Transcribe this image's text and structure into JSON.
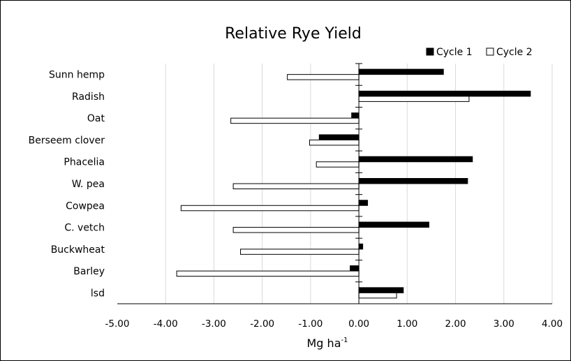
{
  "chart_data": {
    "type": "bar",
    "orientation": "horizontal",
    "title": "Relative Rye Yield",
    "xlabel_main": "Mg ha",
    "xlabel_sup": "-1",
    "ylabel": "",
    "xlim": [
      -5,
      4
    ],
    "x_ticks": [
      "-5.00",
      "-4.00",
      "-3.00",
      "-2.00",
      "-1.00",
      "0.00",
      "1.00",
      "2.00",
      "3.00",
      "4.00"
    ],
    "grid": "vertical",
    "legend_position": "top-right",
    "categories": [
      "Sunn hemp",
      "Radish",
      "Oat",
      "Berseem clover",
      "Phacelia",
      "W. pea",
      "Cowpea",
      "C. vetch",
      "Buckwheat",
      "Barley",
      "lsd"
    ],
    "series": [
      {
        "name": "Cycle 1",
        "color": "#000000",
        "fill": "solid",
        "values": [
          1.75,
          3.55,
          -0.15,
          -0.82,
          2.35,
          2.25,
          0.18,
          1.45,
          0.08,
          -0.18,
          0.92
        ]
      },
      {
        "name": "Cycle 2",
        "color": "#ffffff",
        "fill": "outline",
        "values": [
          -1.48,
          2.28,
          -2.65,
          -1.02,
          -0.88,
          -2.6,
          -3.68,
          -2.6,
          -2.45,
          -3.77,
          0.78
        ]
      }
    ]
  }
}
